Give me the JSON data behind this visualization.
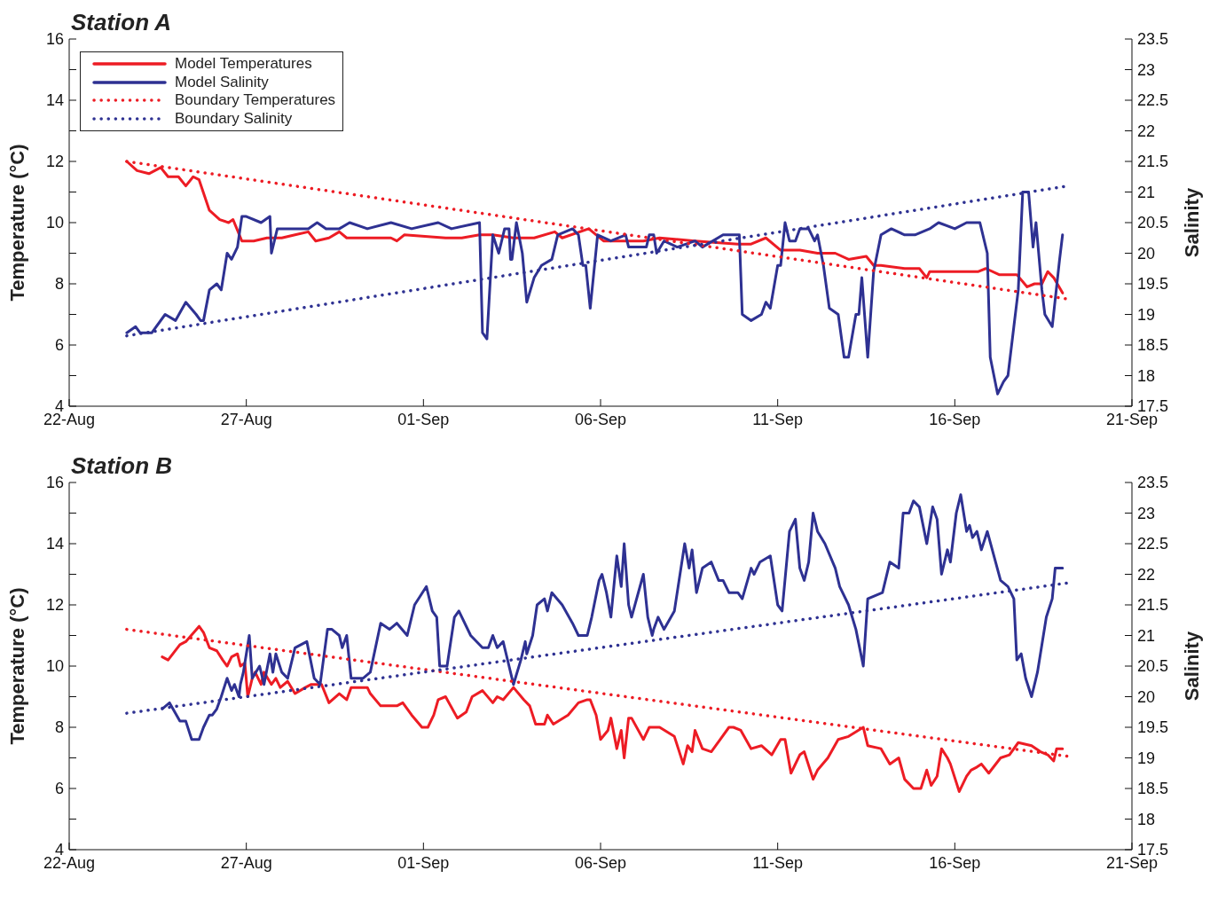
{
  "chart_data": [
    {
      "type": "line",
      "title": "Station A",
      "ylabel": "Temperature (°C)",
      "y2label": "Salinity",
      "legend": "top left",
      "grid": false,
      "marker": "none",
      "xlim": [
        "--08-22",
        "--09-21"
      ],
      "xticks": [
        {
          "value": "--08-22",
          "label": "22-Aug"
        },
        {
          "value": "--08-27",
          "label": "27-Aug"
        },
        {
          "value": "--09-01",
          "label": "01-Sep"
        },
        {
          "value": "--09-06",
          "label": "06-Sep"
        },
        {
          "value": "--09-11",
          "label": "11-Sep"
        },
        {
          "value": "--09-16",
          "label": "16-Sep"
        },
        {
          "value": "--09-21",
          "label": "21-Sep"
        }
      ],
      "ylim": [
        4,
        16
      ],
      "yticks": [
        4,
        {
          "value": 5,
          "label": null
        },
        6,
        {
          "value": 7,
          "label": null
        },
        8,
        {
          "value": 9,
          "label": null
        },
        10,
        {
          "value": 11,
          "label": null
        },
        12,
        {
          "value": 13,
          "label": null
        },
        14,
        {
          "value": 15,
          "label": null
        },
        16
      ],
      "y2lim": [
        17.5,
        23.5
      ],
      "y2ticks": [
        17.5,
        18,
        18.5,
        19,
        19.5,
        20,
        20.5,
        21,
        21.5,
        22,
        22.5,
        23,
        23.5
      ],
      "series": [
        {
          "name": "Model Temperatures",
          "color": "#ed1c24",
          "line_style": "solid",
          "x": [
            "--08-23T15:00",
            "--08-23T22:00",
            "--08-24T06:00",
            "--08-24T14:00",
            "--08-24T19:00",
            "--08-25T02:00",
            "--08-25T07:00",
            "--08-25T12:00",
            "--08-25T16:00",
            "--08-25T23:00",
            "--08-26T06:00",
            "--08-26T12:00",
            "--08-26T15:00",
            "--08-26T21:00",
            "--08-27T05:00",
            "--08-27T14:00",
            "--08-28T00:00",
            "--08-28T09:00",
            "--08-28T18:00",
            "--08-28T23:00",
            "--08-29T08:00",
            "--08-29T15:00",
            "--08-29T20:00",
            "--08-30T07:00",
            "--08-31T02:00",
            "--08-31T06:00",
            "--08-31T11:00",
            "--09-01T15:00",
            "--09-02T02:00",
            "--09-02T14:00",
            "--09-02T23:00",
            "--09-03T13:00",
            "--09-04T03:00",
            "--09-04T17:00",
            "--09-04T22:00",
            "--09-05T16:00",
            "--09-06T02:00",
            "--09-07T05:00",
            "--09-07T16:00",
            "--09-08T16:00",
            "--09-09T21:00",
            "--09-10T06:00",
            "--09-10T16:00",
            "--09-11T02:00",
            "--09-11T06:00",
            "--09-11T15:00",
            "--09-12T03:00",
            "--09-12T15:00",
            "--09-13T00:00",
            "--09-13T12:00",
            "--09-13T17:00",
            "--09-13T22:00",
            "--09-14T14:00",
            "--09-15T00:00",
            "--09-15T05:00",
            "--09-15T07:00",
            "--09-15T14:00",
            "--09-16T16:00",
            "--09-16T21:00",
            "--09-17T06:00",
            "--09-17T18:00",
            "--09-18T01:00",
            "--09-18T06:00",
            "--09-18T11:00",
            "--09-18T15:00",
            "--09-18T19:00",
            "--09-19T01:00"
          ],
          "values": [
            12.0,
            11.7,
            11.6,
            11.8,
            11.5,
            11.5,
            11.2,
            11.5,
            11.4,
            10.4,
            10.1,
            10.0,
            10.1,
            9.4,
            9.4,
            9.5,
            9.5,
            9.6,
            9.7,
            9.4,
            9.5,
            9.7,
            9.5,
            9.5,
            9.5,
            9.4,
            9.6,
            9.5,
            9.5,
            9.6,
            9.6,
            9.5,
            9.5,
            9.7,
            9.5,
            9.8,
            9.4,
            9.4,
            9.5,
            9.4,
            9.3,
            9.3,
            9.5,
            9.1,
            9.1,
            9.1,
            9.0,
            9.0,
            8.8,
            8.9,
            8.6,
            8.6,
            8.5,
            8.5,
            8.2,
            8.4,
            8.4,
            8.4,
            8.5,
            8.3,
            8.3,
            7.9,
            8.0,
            8.0,
            8.4,
            8.2,
            7.7
          ]
        },
        {
          "name": "Model Salinity",
          "color": "#2e3192",
          "line_style": "solid",
          "axis": "y2",
          "x": [
            "--08-23T15:00",
            "--08-23T21:00",
            "--08-24T00:00",
            "--08-24T08:00",
            "--08-24T17:00",
            "--08-25T00:00",
            "--08-25T07:00",
            "--08-25T14:00",
            "--08-25T17:00",
            "--08-25T19:00",
            "--08-25T23:00",
            "--08-26T04:00",
            "--08-26T07:00",
            "--08-26T11:00",
            "--08-26T14:00",
            "--08-26T18:00",
            "--08-26T21:00",
            "--08-27T00:00",
            "--08-27T10:00",
            "--08-27T16:00",
            "--08-27T17:00",
            "--08-27T21:00",
            "--08-28T04:00",
            "--08-28T18:00",
            "--08-29T00:00",
            "--08-29T06:00",
            "--08-29T15:00",
            "--08-29T22:00",
            "--08-30T10:00",
            "--08-31T02:00",
            "--08-31T16:00",
            "--09-01T10:00",
            "--09-01T19:00",
            "--09-02T14:00",
            "--09-02T16:00",
            "--09-02T19:00",
            "--09-02T23:00",
            "--09-03T03:00",
            "--09-03T07:00",
            "--09-03T10:00",
            "--09-03T11:00",
            "--09-03T12:00",
            "--09-03T15:00",
            "--09-03T19:00",
            "--09-03T22:00",
            "--09-04T03:00",
            "--09-04T08:00",
            "--09-04T15:00",
            "--09-04T19:00",
            "--09-05T05:00",
            "--09-05T09:00",
            "--09-05T12:00",
            "--09-05T14:00",
            "--09-05T17:00",
            "--09-05T22:00",
            "--09-06T07:00",
            "--09-06T17:00",
            "--09-06T19:00",
            "--09-07T00:00",
            "--09-07T07:00",
            "--09-07T09:00",
            "--09-07T12:00",
            "--09-07T14:00",
            "--09-07T19:00",
            "--09-08T04:00",
            "--09-08T16:00",
            "--09-08T21:00",
            "--09-09T11:00",
            "--09-09T22:00",
            "--09-10T00:00",
            "--09-10T06:00",
            "--09-10T13:00",
            "--09-10T16:00",
            "--09-10T19:00",
            "--09-11T00:00",
            "--09-11T02:00",
            "--09-11T05:00",
            "--09-11T08:00",
            "--09-11T12:00",
            "--09-11T15:00",
            "--09-11T21:00",
            "--09-12T01:00",
            "--09-12T03:00",
            "--09-12T07:00",
            "--09-12T11:00",
            "--09-12T17:00",
            "--09-12T21:00",
            "--09-13T00:00",
            "--09-13T05:00",
            "--09-13T07:00",
            "--09-13T09:00",
            "--09-13T13:00",
            "--09-13T17:00",
            "--09-13T22:00",
            "--09-14T05:00",
            "--09-14T14:00",
            "--09-14T21:00",
            "--09-15T07:00",
            "--09-15T13:00",
            "--09-16T00:00",
            "--09-16T08:00",
            "--09-16T14:00",
            "--09-16T17:00",
            "--09-16T22:00",
            "--09-17T00:00",
            "--09-17T05:00",
            "--09-17T09:00",
            "--09-17T12:00",
            "--09-17T16:00",
            "--09-17T19:00",
            "--09-17T22:00",
            "--09-18T02:00",
            "--09-18T05:00",
            "--09-18T07:00",
            "--09-18T11:00",
            "--09-18T13:00",
            "--09-18T18:00",
            "--09-18T23:00",
            "--09-19T01:00"
          ],
          "values": [
            18.7,
            18.8,
            18.7,
            18.7,
            19.0,
            18.9,
            19.2,
            19.0,
            18.9,
            18.9,
            19.4,
            19.5,
            19.4,
            20.0,
            19.9,
            20.1,
            20.6,
            20.6,
            20.5,
            20.6,
            20.0,
            20.4,
            20.4,
            20.4,
            20.5,
            20.4,
            20.4,
            20.5,
            20.4,
            20.5,
            20.4,
            20.5,
            20.4,
            20.5,
            18.7,
            18.6,
            20.3,
            20.0,
            20.4,
            20.4,
            19.9,
            19.9,
            20.5,
            20.0,
            19.2,
            19.6,
            19.8,
            19.9,
            20.3,
            20.4,
            20.3,
            19.8,
            19.8,
            19.1,
            20.3,
            20.2,
            20.3,
            20.1,
            20.1,
            20.1,
            20.3,
            20.3,
            20.0,
            20.2,
            20.1,
            20.2,
            20.1,
            20.3,
            20.3,
            19.0,
            18.9,
            19.0,
            19.2,
            19.1,
            19.8,
            19.8,
            20.5,
            20.2,
            20.2,
            20.4,
            20.4,
            20.2,
            20.3,
            19.8,
            19.1,
            19.0,
            18.3,
            18.3,
            19.0,
            19.0,
            19.6,
            18.3,
            19.7,
            20.3,
            20.4,
            20.3,
            20.3,
            20.4,
            20.5,
            20.4,
            20.5,
            20.5,
            20.5,
            20.0,
            18.3,
            17.7,
            17.9,
            18.0,
            18.8,
            19.4,
            21.0,
            21.0,
            20.1,
            20.5,
            19.4,
            19.0,
            18.8,
            19.9,
            20.3
          ]
        },
        {
          "name": "Boundary Temperatures",
          "color": "#ed1c24",
          "line_style": "dotted",
          "x": [
            "--08-23T15:00",
            "--09-19T05:00"
          ],
          "values": [
            12.0,
            7.5
          ]
        },
        {
          "name": "Boundary Salinity",
          "color": "#2e3192",
          "line_style": "dotted",
          "axis": "y2",
          "x": [
            "--08-23T15:00",
            "--09-19T05:00"
          ],
          "values": [
            18.65,
            21.1
          ]
        }
      ]
    },
    {
      "type": "line",
      "title": "Station B",
      "ylabel": "Temperature (°C)",
      "y2label": "Salinity",
      "legend": false,
      "grid": false,
      "marker": "none",
      "xlim": [
        "--08-22",
        "--09-21"
      ],
      "xticks": [
        {
          "value": "--08-22",
          "label": "22-Aug"
        },
        {
          "value": "--08-27",
          "label": "27-Aug"
        },
        {
          "value": "--09-01",
          "label": "01-Sep"
        },
        {
          "value": "--09-06",
          "label": "06-Sep"
        },
        {
          "value": "--09-11",
          "label": "11-Sep"
        },
        {
          "value": "--09-16",
          "label": "16-Sep"
        },
        {
          "value": "--09-21",
          "label": "21-Sep"
        }
      ],
      "ylim": [
        4,
        16
      ],
      "yticks": [
        4,
        {
          "value": 5,
          "label": null
        },
        6,
        {
          "value": 7,
          "label": null
        },
        8,
        {
          "value": 9,
          "label": null
        },
        10,
        {
          "value": 11,
          "label": null
        },
        12,
        {
          "value": 13,
          "label": null
        },
        14,
        {
          "value": 15,
          "label": null
        },
        16
      ],
      "y2lim": [
        17.5,
        23.5
      ],
      "y2ticks": [
        17.5,
        18,
        18.5,
        19,
        19.5,
        20,
        20.5,
        21,
        21.5,
        22,
        22.5,
        23,
        23.5
      ],
      "series": [
        {
          "color": "#ed1c24",
          "line_style": "solid",
          "x": [
            "--08-24T15:00",
            "--08-24T19:00",
            "--08-25T03:00",
            "--08-25T07:00",
            "--08-25T16:00",
            "--08-25T19:00",
            "--08-25T23:00",
            "--08-26T04:00",
            "--08-26T08:00",
            "--08-26T11:00",
            "--08-26T14:00",
            "--08-26T18:00",
            "--08-26T20:00",
            "--08-26T23:00",
            "--08-27T01:00",
            "--08-27T04:00",
            "--08-27T06:00",
            "--08-27T10:00",
            "--08-27T12:00",
            "--08-27T17:00",
            "--08-27T20:00",
            "--08-27T23:00",
            "--08-28T04:00",
            "--08-28T09:00",
            "--08-28T16:00",
            "--08-28T20:00",
            "--08-29T03:00",
            "--08-29T08:00",
            "--08-29T15:00",
            "--08-29T20:00",
            "--08-29T23:00",
            "--08-30T10:00",
            "--08-30T12:00",
            "--08-30T19:00",
            "--08-31T06:00",
            "--08-31T10:00",
            "--08-31T16:00",
            "--08-31T23:00",
            "--09-01T03:00",
            "--09-01T07:00",
            "--09-01T10:00",
            "--09-01T15:00",
            "--09-01T23:00",
            "--09-02T05:00",
            "--09-02T09:00",
            "--09-02T16:00",
            "--09-02T23:00",
            "--09-03T02:00",
            "--09-03T06:00",
            "--09-03T13:00",
            "--09-03T20:00",
            "--09-04T00:00",
            "--09-04T04:00",
            "--09-04T10:00",
            "--09-04T12:00",
            "--09-04T16:00",
            "--09-05T02:00",
            "--09-05T09:00",
            "--09-05T15:00",
            "--09-05T17:00",
            "--09-05T21:00",
            "--09-06T00:00",
            "--09-06T05:00",
            "--09-06T07:00",
            "--09-06T11:00",
            "--09-06T14:00",
            "--09-06T16:00",
            "--09-06T19:00",
            "--09-06T21:00",
            "--09-07T05:00",
            "--09-07T09:00",
            "--09-07T16:00",
            "--09-08T02:00",
            "--09-08T08:00",
            "--09-08T11:00",
            "--09-08T14:00",
            "--09-08T16:00",
            "--09-08T21:00",
            "--09-09T03:00",
            "--09-09T09:00",
            "--09-09T15:00",
            "--09-09T18:00",
            "--09-09T23:00",
            "--09-10T06:00",
            "--09-10T13:00",
            "--09-10T20:00",
            "--09-11T02:00",
            "--09-11T05:00",
            "--09-11T09:00",
            "--09-11T15:00",
            "--09-11T18:00",
            "--09-12T00:00",
            "--09-12T03:00",
            "--09-12T10:00",
            "--09-12T17:00",
            "--09-13T00:00",
            "--09-13T10:00",
            "--09-13T13:00",
            "--09-13T22:00",
            "--09-14T04:00",
            "--09-14T10:00",
            "--09-14T14:00",
            "--09-14T20:00",
            "--09-15T01:00",
            "--09-15T05:00",
            "--09-15T08:00",
            "--09-15T12:00",
            "--09-15T15:00",
            "--09-15T19:00",
            "--09-15T21:00",
            "--09-16T03:00",
            "--09-16T08:00",
            "--09-16T11:00",
            "--09-16T15:00",
            "--09-16T18:00",
            "--09-16T23:00",
            "--09-17T07:00",
            "--09-17T13:00",
            "--09-17T19:00",
            "--09-18T04:00",
            "--09-18T10:00",
            "--09-18T15:00",
            "--09-18T19:00",
            "--09-18T21:00",
            "--09-19T01:00"
          ],
          "values": [
            10.3,
            10.2,
            10.7,
            10.8,
            11.3,
            11.1,
            10.6,
            10.5,
            10.2,
            10.0,
            10.3,
            10.4,
            10.0,
            10.1,
            9.0,
            9.6,
            9.8,
            9.4,
            9.8,
            9.4,
            9.6,
            9.3,
            9.5,
            9.1,
            9.3,
            9.4,
            9.4,
            8.8,
            9.1,
            8.9,
            9.3,
            9.3,
            9.1,
            8.7,
            8.7,
            8.8,
            8.4,
            8.0,
            8.0,
            8.4,
            8.9,
            9.0,
            8.3,
            8.5,
            9.0,
            9.2,
            8.8,
            9.0,
            8.9,
            9.3,
            8.9,
            8.7,
            8.1,
            8.1,
            8.4,
            8.1,
            8.4,
            8.8,
            8.9,
            8.9,
            8.4,
            7.6,
            7.9,
            8.3,
            7.3,
            7.9,
            7.0,
            8.3,
            8.3,
            7.6,
            8.0,
            8.0,
            7.7,
            6.8,
            7.4,
            7.2,
            7.9,
            7.3,
            7.2,
            7.6,
            8.0,
            8.0,
            7.9,
            7.3,
            7.4,
            7.1,
            7.6,
            7.6,
            6.5,
            7.1,
            7.2,
            6.3,
            6.6,
            7.0,
            7.6,
            7.7,
            8.0,
            7.4,
            7.3,
            6.8,
            7.0,
            6.3,
            6.0,
            6.0,
            6.6,
            6.1,
            6.4,
            7.3,
            7.0,
            6.8,
            5.9,
            6.4,
            6.6,
            6.7,
            6.8,
            6.5,
            7.0,
            7.1,
            7.5,
            7.4,
            7.2,
            7.1,
            6.9,
            7.3,
            7.3
          ]
        },
        {
          "color": "#2e3192",
          "line_style": "solid",
          "axis": "y2",
          "x": [
            "--08-24T15:00",
            "--08-24T20:00",
            "--08-25T03:00",
            "--08-25T07:00",
            "--08-25T11:00",
            "--08-25T16:00",
            "--08-25T19:00",
            "--08-25T23:00",
            "--08-26T01:00",
            "--08-26T04:00",
            "--08-26T07:00",
            "--08-26T11:00",
            "--08-26T14:00",
            "--08-26T16:00",
            "--08-26T19:00",
            "--08-26T20:00",
            "--08-26T22:00",
            "--08-27T02:00",
            "--08-27T04:00",
            "--08-27T09:00",
            "--08-27T12:00",
            "--08-27T16:00",
            "--08-27T18:00",
            "--08-27T20:00",
            "--08-28T00:00",
            "--08-28T04:00",
            "--08-28T09:00",
            "--08-28T17:00",
            "--08-28T22:00",
            "--08-29T02:00",
            "--08-29T07:00",
            "--08-29T10:00",
            "--08-29T15:00",
            "--08-29T17:00",
            "--08-29T20:00",
            "--08-29T23:00",
            "--08-30T07:00",
            "--08-30T12:00",
            "--08-30T19:00",
            "--08-31T01:00",
            "--08-31T06:00",
            "--08-31T13:00",
            "--08-31T18:00",
            "--09-01T02:00",
            "--09-01T06:00",
            "--09-01T09:00",
            "--09-01T11:00",
            "--09-01T16:00",
            "--09-01T21:00",
            "--09-02T00:00",
            "--09-02T08:00",
            "--09-02T16:00",
            "--09-02T20:00",
            "--09-02T23:00",
            "--09-03T02:00",
            "--09-03T06:00",
            "--09-03T10:00",
            "--09-03T13:00",
            "--09-03T18:00",
            "--09-03T21:00",
            "--09-03T22:00",
            "--09-04T02:00",
            "--09-04T05:00",
            "--09-04T10:00",
            "--09-04T12:00",
            "--09-04T15:00",
            "--09-04T22:00",
            "--09-05T05:00",
            "--09-05T09:00",
            "--09-05T15:00",
            "--09-05T18:00",
            "--09-05T23:00",
            "--09-06T01:00",
            "--09-06T04:00",
            "--09-06T07:00",
            "--09-06T11:00",
            "--09-06T14:00",
            "--09-06T16:00",
            "--09-06T19:00",
            "--09-06T21:00",
            "--09-07T05:00",
            "--09-07T08:00",
            "--09-07T11:00",
            "--09-07T12:00",
            "--09-07T15:00",
            "--09-07T19:00",
            "--09-08T02:00",
            "--09-08T09:00",
            "--09-08T12:00",
            "--09-08T14:00",
            "--09-08T17:00",
            "--09-08T21:00",
            "--09-09T03:00",
            "--09-09T08:00",
            "--09-09T11:00",
            "--09-09T15:00",
            "--09-09T21:00",
            "--09-10T00:00",
            "--09-10T06:00",
            "--09-10T08:00",
            "--09-10T12:00",
            "--09-10T19:00",
            "--09-11T00:00",
            "--09-11T03:00",
            "--09-11T08:00",
            "--09-11T12:00",
            "--09-11T15:00",
            "--09-11T18:00",
            "--09-11T21:00",
            "--09-12T00:00",
            "--09-12T03:00",
            "--09-12T08:00",
            "--09-12T15:00",
            "--09-12T18:00",
            "--09-13T00:00",
            "--09-13T05:00",
            "--09-13T10:00",
            "--09-13T13:00",
            "--09-13T23:00",
            "--09-14T04:00",
            "--09-14T10:00",
            "--09-14T13:00",
            "--09-14T17:00",
            "--09-14T20:00",
            "--09-15T00:00",
            "--09-15T05:00",
            "--09-15T09:00",
            "--09-15T12:00",
            "--09-15T15:00",
            "--09-15T19:00",
            "--09-15T21:00",
            "--09-16T01:00",
            "--09-16T04:00",
            "--09-16T08:00",
            "--09-16T10:00",
            "--09-16T12:00",
            "--09-16T15:00",
            "--09-16T18:00",
            "--09-16T22:00",
            "--09-17T07:00",
            "--09-17T12:00",
            "--09-17T16:00",
            "--09-17T18:00",
            "--09-17T21:00",
            "--09-18T00:00",
            "--09-18T04:00",
            "--09-18T08:00",
            "--09-18T14:00",
            "--09-18T18:00",
            "--09-18T20:00",
            "--09-19T01:00"
          ],
          "values": [
            19.8,
            19.9,
            19.6,
            19.6,
            19.3,
            19.3,
            19.5,
            19.7,
            19.7,
            19.8,
            20.0,
            20.3,
            20.1,
            20.2,
            20.0,
            20.2,
            20.4,
            21.0,
            20.3,
            20.5,
            20.2,
            20.7,
            20.4,
            20.7,
            20.4,
            20.3,
            20.8,
            20.9,
            20.3,
            20.2,
            21.1,
            21.1,
            21.0,
            20.8,
            21.0,
            20.3,
            20.3,
            20.4,
            21.2,
            21.1,
            21.2,
            21.0,
            21.5,
            21.8,
            21.4,
            21.3,
            20.5,
            20.5,
            21.3,
            21.4,
            21.0,
            20.8,
            20.8,
            21.0,
            20.8,
            20.9,
            20.5,
            20.2,
            20.6,
            20.9,
            20.7,
            21.0,
            21.5,
            21.6,
            21.4,
            21.7,
            21.5,
            21.2,
            21.0,
            21.0,
            21.3,
            21.9,
            22.0,
            21.7,
            21.3,
            22.3,
            21.8,
            22.5,
            21.5,
            21.3,
            22.0,
            21.3,
            21.0,
            21.1,
            21.3,
            21.1,
            21.4,
            22.5,
            22.1,
            22.4,
            21.7,
            22.1,
            22.2,
            21.9,
            21.9,
            21.7,
            21.7,
            21.6,
            22.1,
            22.0,
            22.2,
            22.3,
            21.5,
            21.4,
            22.7,
            22.9,
            22.1,
            21.9,
            22.2,
            23.0,
            22.7,
            22.5,
            22.1,
            21.8,
            21.5,
            21.1,
            20.5,
            21.6,
            21.7,
            22.2,
            22.1,
            23.0,
            23.0,
            23.2,
            23.1,
            22.5,
            23.1,
            22.9,
            22.0,
            22.4,
            22.2,
            23.0,
            23.3,
            22.7,
            22.8,
            22.6,
            22.7,
            22.4,
            22.7,
            21.9,
            21.8,
            21.6,
            20.6,
            20.7,
            20.3,
            20.0,
            20.4,
            21.3,
            21.6,
            22.1,
            22.1
          ]
        },
        {
          "color": "#ed1c24",
          "line_style": "dotted",
          "x": [
            "--08-23T15:00",
            "--09-19T05:00"
          ],
          "values": [
            11.2,
            7.05
          ]
        },
        {
          "color": "#2e3192",
          "line_style": "dotted",
          "axis": "y2",
          "x": [
            "--08-23T15:00",
            "--09-19T05:00"
          ],
          "values": [
            19.73,
            21.86
          ]
        }
      ]
    }
  ]
}
